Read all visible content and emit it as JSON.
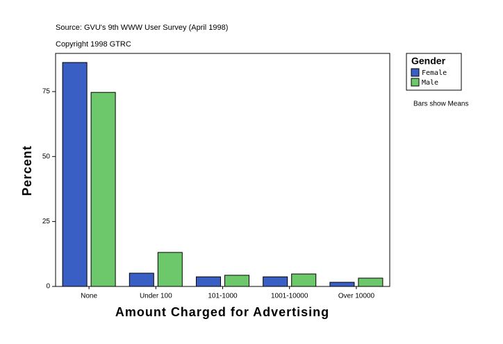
{
  "chart_data": {
    "type": "bar",
    "title": "Source: GVU's 9th WWW User Survey (April 1998)",
    "subtitle": "Copyright 1998 GTRC",
    "x_label": "Amount Charged for Advertising",
    "y_label": "Percent",
    "legend_title": "Gender",
    "annotation": "Bars show Means",
    "categories": [
      "None",
      "Under 100",
      "101-1000",
      "1001-10000",
      "Over 10000"
    ],
    "series": [
      {
        "name": "Female",
        "color": "#3a5fc4",
        "values": [
          86.2,
          5.1,
          3.7,
          3.7,
          1.6
        ]
      },
      {
        "name": "Male",
        "color": "#6cc86a",
        "values": [
          74.7,
          13.1,
          4.3,
          4.8,
          3.2
        ]
      }
    ],
    "ylim": [
      0,
      89.7
    ],
    "yticks": [
      0,
      25,
      50,
      75
    ],
    "legend": "right"
  }
}
